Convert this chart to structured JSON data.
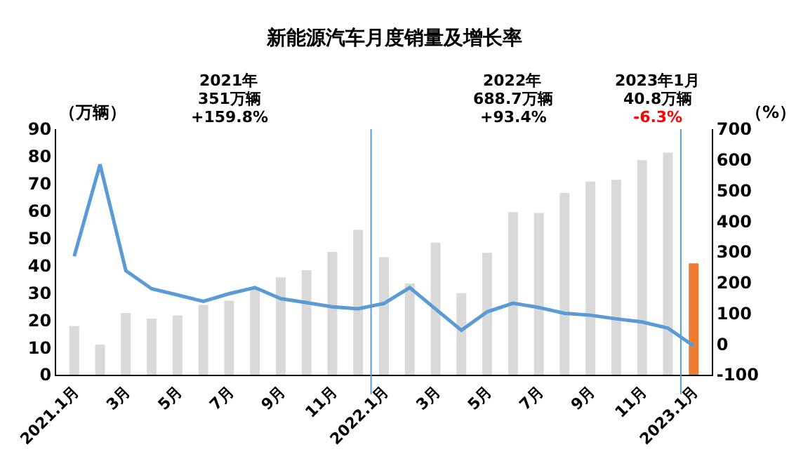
{
  "chart_data": {
    "type": "bar",
    "title": "新能源汽车月度销量及增长率",
    "ylabel": "（万辆）",
    "y2label": "（%）",
    "categories": [
      "2021.1月",
      null,
      "3月",
      null,
      "5月",
      null,
      "7月",
      null,
      "9月",
      null,
      "11月",
      null,
      "2022.1月",
      null,
      "3月",
      null,
      "5月",
      null,
      "7月",
      null,
      "9月",
      null,
      "11月",
      null,
      "2023.1月"
    ],
    "series": [
      {
        "colors": [
          "#d9d9d9",
          "#d9d9d9",
          "#d9d9d9",
          "#d9d9d9",
          "#d9d9d9",
          "#d9d9d9",
          "#d9d9d9",
          "#d9d9d9",
          "#d9d9d9",
          "#d9d9d9",
          "#d9d9d9",
          "#d9d9d9",
          "#d9d9d9",
          "#d9d9d9",
          "#d9d9d9",
          "#d9d9d9",
          "#d9d9d9",
          "#d9d9d9",
          "#d9d9d9",
          "#d9d9d9",
          "#d9d9d9",
          "#d9d9d9",
          "#d9d9d9",
          "#d9d9d9",
          "#ed7d31"
        ],
        "values": [
          17.9,
          11.0,
          22.6,
          20.6,
          21.7,
          25.6,
          27.1,
          32.1,
          35.7,
          38.3,
          45.0,
          53.1,
          43.1,
          33.4,
          48.4,
          29.9,
          44.7,
          59.6,
          59.3,
          66.6,
          70.8,
          71.4,
          78.6,
          81.4,
          40.8
        ]
      },
      {
        "type": "line",
        "axis": "y2",
        "color": "#5b9bd5",
        "values": [
          286,
          585,
          239,
          180,
          160,
          139,
          164,
          184,
          148,
          135,
          121,
          115,
          132,
          184,
          114,
          45,
          105,
          133,
          119,
          100,
          94,
          82,
          72,
          52,
          -6.3
        ]
      }
    ],
    "ylim": [
      0,
      90
    ],
    "yticks": [
      0,
      10,
      20,
      30,
      40,
      50,
      60,
      70,
      80,
      90
    ],
    "y2lim": [
      -100,
      700
    ],
    "y2ticks": [
      -100,
      0,
      100,
      200,
      300,
      400,
      500,
      600,
      700
    ],
    "marker": "none",
    "line_style": "solid",
    "annotations": [
      "2021年",
      "351万辆",
      "+159.8%",
      "2022年",
      "688.7万辆",
      "+93.4%",
      "2023年1月",
      "40.8万辆",
      "-6.3%"
    ]
  }
}
